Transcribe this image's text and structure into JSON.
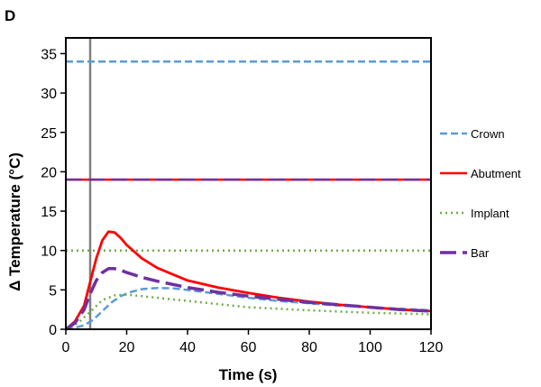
{
  "chart_data": {
    "type": "line",
    "panel_label": "D",
    "title": "",
    "xlabel": "Time (s)",
    "ylabel": "Δ Temperature  (°C)",
    "xlim": [
      0,
      120
    ],
    "ylim": [
      0,
      37
    ],
    "xticks": [
      0,
      20,
      40,
      60,
      80,
      100,
      120
    ],
    "yticks": [
      0,
      5,
      10,
      15,
      20,
      25,
      30,
      35
    ],
    "grid": false,
    "legend_position": "right",
    "vertical_marker_x": 8,
    "series": [
      {
        "name": "Crown",
        "color": "#5b9bd5",
        "dash": "dashed",
        "x": [
          0,
          3,
          6,
          9,
          12,
          15,
          18,
          21,
          25,
          30,
          35,
          40,
          50,
          60,
          70,
          80,
          90,
          100,
          110,
          120
        ],
        "y": [
          0,
          0.2,
          0.5,
          1.2,
          2.3,
          3.4,
          4.2,
          4.7,
          5.1,
          5.25,
          5.2,
          5.0,
          4.5,
          4.0,
          3.6,
          3.3,
          3.0,
          2.8,
          2.6,
          2.4
        ]
      },
      {
        "name": "Abutment",
        "color": "#ff0000",
        "dash": "solid",
        "x": [
          0,
          3,
          6,
          8,
          10,
          12,
          14,
          16,
          18,
          20,
          25,
          30,
          40,
          50,
          60,
          70,
          80,
          90,
          100,
          110,
          120
        ],
        "y": [
          0,
          1.0,
          3.0,
          6.0,
          9.0,
          11.3,
          12.4,
          12.3,
          11.6,
          10.7,
          9.0,
          7.8,
          6.2,
          5.3,
          4.6,
          4.0,
          3.5,
          3.1,
          2.8,
          2.5,
          2.3
        ]
      },
      {
        "name": "Implant",
        "color": "#70ad47",
        "dash": "dotted",
        "x": [
          0,
          4,
          8,
          12,
          16,
          20,
          25,
          30,
          40,
          50,
          60,
          80,
          100,
          120
        ],
        "y": [
          0,
          0.8,
          2.2,
          3.7,
          4.3,
          4.4,
          4.2,
          4.0,
          3.6,
          3.2,
          2.8,
          2.4,
          2.1,
          1.9
        ]
      },
      {
        "name": "Bar",
        "color": "#7030a0",
        "dash": "longdash",
        "x": [
          0,
          3,
          6,
          8,
          10,
          12,
          14,
          16,
          18,
          20,
          25,
          30,
          40,
          50,
          60,
          70,
          80,
          90,
          100,
          110,
          120
        ],
        "y": [
          0,
          0.8,
          2.5,
          4.5,
          6.2,
          7.2,
          7.7,
          7.7,
          7.5,
          7.2,
          6.6,
          6.1,
          5.3,
          4.7,
          4.2,
          3.8,
          3.4,
          3.1,
          2.8,
          2.5,
          2.3
        ]
      }
    ],
    "reference_lines": [
      {
        "series": "Crown",
        "y": 34,
        "color": "#5b9bd5",
        "dash": "dashed"
      },
      {
        "series": "Abutment",
        "y": 19,
        "color": "#ff0000",
        "dash": "solid"
      },
      {
        "series": "Implant",
        "y": 10,
        "color": "#70ad47",
        "dash": "dotted"
      },
      {
        "series": "Bar",
        "y": 19,
        "color": "#7030a0",
        "dash": "longdash"
      }
    ]
  }
}
